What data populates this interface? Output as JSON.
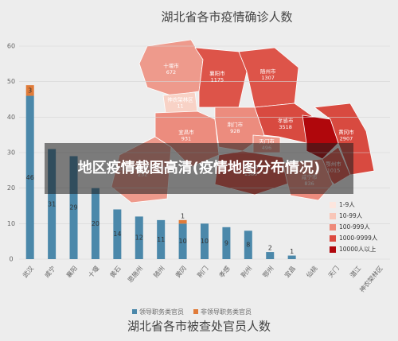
{
  "banner": "地区疫情截图高清(疫情地图分布情况)",
  "chart_data": [
    {
      "type": "bar",
      "stacked": true,
      "title": "湖北省各市被查处官员人数",
      "categories": [
        "武汉",
        "咸宁",
        "襄阳",
        "十堰",
        "黄石",
        "恩施州",
        "随州",
        "黄冈",
        "荆门",
        "孝感",
        "荆州",
        "鄂州",
        "宜昌",
        "仙桃",
        "天门",
        "潜江",
        "神农架林区"
      ],
      "series": [
        {
          "name": "领导职务类官员",
          "color": "#4b88aa",
          "values": [
            46,
            31,
            29,
            20,
            14,
            12,
            11,
            10,
            10,
            9,
            8,
            2,
            1,
            0,
            0,
            0,
            0
          ]
        },
        {
          "name": "非领导职务类官员",
          "color": "#e07b39",
          "values": [
            3,
            0,
            0,
            0,
            0,
            0,
            0,
            1,
            0,
            0,
            0,
            0,
            0,
            0,
            0,
            0,
            0
          ]
        }
      ],
      "ylim": [
        0,
        60
      ],
      "yticks": [
        0,
        10,
        20,
        30,
        40,
        50,
        60
      ]
    },
    {
      "type": "map",
      "title": "湖北省各市疫情确诊人数",
      "regions": [
        {
          "name": "十堰市",
          "value": 672,
          "color": "#ee9a8c"
        },
        {
          "name": "神农架林区",
          "value": 11,
          "color": "#f8d2c6"
        },
        {
          "name": "襄阳市",
          "value": 1175,
          "color": "#dd5449"
        },
        {
          "name": "随州市",
          "value": 1307,
          "color": "#dd5449"
        },
        {
          "name": "恩施土家族苗族自治州",
          "value": 252,
          "color": "#ee9a8c"
        },
        {
          "name": "宜昌市",
          "value": 931,
          "color": "#ec8c7e"
        },
        {
          "name": "荆门市",
          "value": 928,
          "color": "#ec8c7e"
        },
        {
          "name": "孝感市",
          "value": 3518,
          "color": "#d84a40"
        },
        {
          "name": "天门市",
          "value": 496,
          "color": "#ee9a8c"
        },
        {
          "name": "荆州市",
          "value": 1580,
          "color": "#dd5449"
        },
        {
          "name": "黄冈市",
          "value": 2907,
          "color": "#d84a40"
        },
        {
          "name": "鄂州市",
          "value": 1015,
          "color": "#dd5449"
        },
        {
          "name": "咸宁市",
          "value": 836,
          "color": "#ec8c7e"
        }
      ],
      "legend": [
        {
          "label": "1-9人",
          "color": "#fde6de"
        },
        {
          "label": "10-99人",
          "color": "#f8c6b8"
        },
        {
          "label": "100-999人",
          "color": "#ee8a7a"
        },
        {
          "label": "1000-9999人",
          "color": "#dc4a40"
        },
        {
          "label": "10000人以上",
          "color": "#b0070c"
        }
      ]
    }
  ]
}
